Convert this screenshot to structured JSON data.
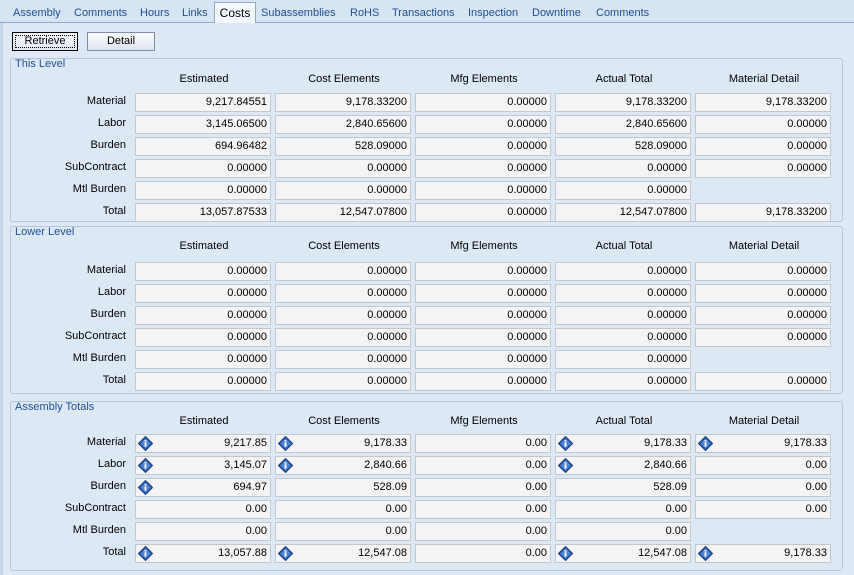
{
  "tabs": [
    "Assembly",
    "Comments",
    "Hours",
    "Links",
    "Costs",
    "Subassemblies",
    "RoHS",
    "Transactions",
    "Inspection",
    "Downtime",
    "Comments"
  ],
  "active_tab": "Costs",
  "buttons": {
    "retrieve": "Retrieve",
    "detail": "Detail"
  },
  "columns": [
    "Estimated",
    "Cost Elements",
    "Mfg Elements",
    "Actual Total",
    "Material Detail"
  ],
  "row_labels": [
    "Material",
    "Labor",
    "Burden",
    "SubContract",
    "Mtl Burden",
    "Total"
  ],
  "groups": [
    {
      "title": "This Level",
      "rows": [
        [
          "9,217.84551",
          "9,178.33200",
          "0.00000",
          "9,178.33200",
          "9,178.33200"
        ],
        [
          "3,145.06500",
          "2,840.65600",
          "0.00000",
          "2,840.65600",
          "0.00000"
        ],
        [
          "694.96482",
          "528.09000",
          "0.00000",
          "528.09000",
          "0.00000"
        ],
        [
          "0.00000",
          "0.00000",
          "0.00000",
          "0.00000",
          "0.00000"
        ],
        [
          "0.00000",
          "0.00000",
          "0.00000",
          "0.00000",
          null
        ],
        [
          "13,057.87533",
          "12,547.07800",
          "0.00000",
          "12,547.07800",
          "9,178.33200"
        ]
      ]
    },
    {
      "title": "Lower Level",
      "rows": [
        [
          "0.00000",
          "0.00000",
          "0.00000",
          "0.00000",
          "0.00000"
        ],
        [
          "0.00000",
          "0.00000",
          "0.00000",
          "0.00000",
          "0.00000"
        ],
        [
          "0.00000",
          "0.00000",
          "0.00000",
          "0.00000",
          "0.00000"
        ],
        [
          "0.00000",
          "0.00000",
          "0.00000",
          "0.00000",
          "0.00000"
        ],
        [
          "0.00000",
          "0.00000",
          "0.00000",
          "0.00000",
          null
        ],
        [
          "0.00000",
          "0.00000",
          "0.00000",
          "0.00000",
          "0.00000"
        ]
      ]
    },
    {
      "title": "Assembly Totals",
      "rows": [
        [
          "9,217.85",
          "9,178.33",
          "0.00",
          "9,178.33",
          "9,178.33"
        ],
        [
          "3,145.07",
          "2,840.66",
          "0.00",
          "2,840.66",
          "0.00"
        ],
        [
          "694.97",
          "528.09",
          "0.00",
          "528.09",
          "0.00"
        ],
        [
          "0.00",
          "0.00",
          "0.00",
          "0.00",
          "0.00"
        ],
        [
          "0.00",
          "0.00",
          "0.00",
          "0.00",
          null
        ],
        [
          "13,057.88",
          "12,547.08",
          "0.00",
          "12,547.08",
          "9,178.33"
        ]
      ],
      "drilldown_icons": [
        [
          true,
          true,
          false,
          true,
          true
        ],
        [
          true,
          true,
          false,
          true,
          false
        ],
        [
          true,
          false,
          false,
          false,
          false
        ],
        [
          false,
          false,
          false,
          false,
          false
        ],
        [
          false,
          false,
          false,
          false,
          false
        ],
        [
          true,
          true,
          false,
          true,
          true
        ]
      ]
    }
  ],
  "colors": {
    "accent": "#1f4e96",
    "background": "#dfe9f5",
    "field": "#f4f4f4",
    "icon": "#2f5fb0"
  }
}
